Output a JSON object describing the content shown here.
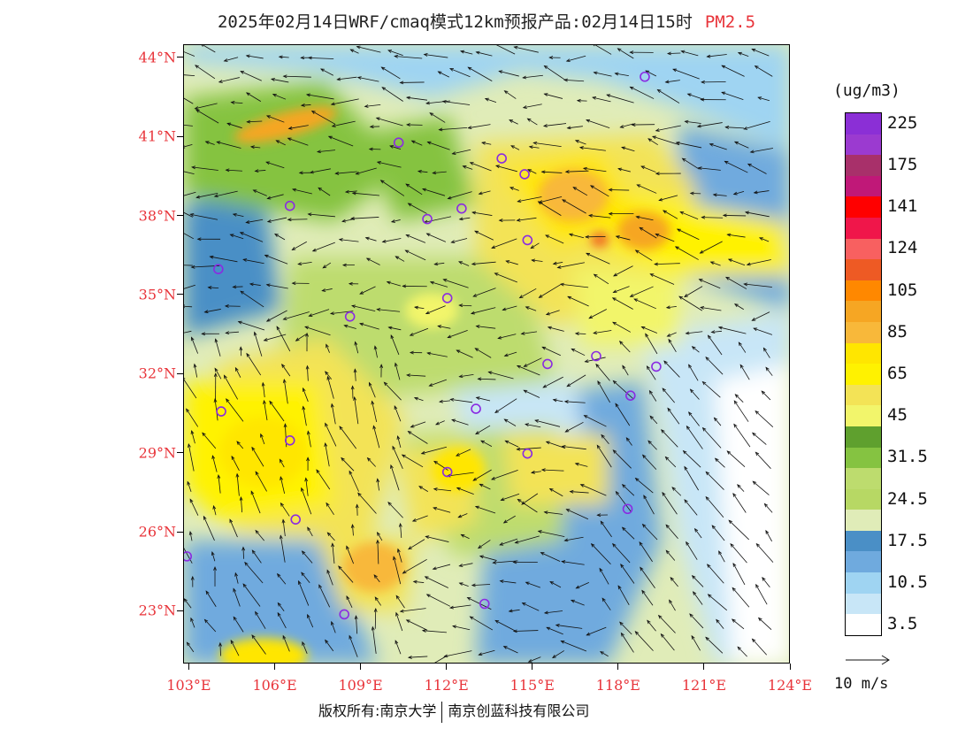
{
  "header": {
    "title": "2025年02月14日WRF/cmaq模式12km预报产品:02月14日15时",
    "variable": "PM2.5",
    "variable_color": "#e8343a"
  },
  "axes": {
    "lat_labels": [
      "44°N",
      "41°N",
      "38°N",
      "35°N",
      "32°N",
      "29°N",
      "26°N",
      "23°N"
    ],
    "lat_values": [
      44,
      41,
      38,
      35,
      32,
      29,
      26,
      23
    ],
    "lon_labels": [
      "103°E",
      "106°E",
      "109°E",
      "112°E",
      "115°E",
      "118°E",
      "121°E",
      "124°E"
    ],
    "lon_values": [
      103,
      106,
      109,
      112,
      115,
      118,
      121,
      124
    ],
    "lat_range": [
      21,
      44.5
    ],
    "lon_range": [
      102.8,
      124
    ],
    "label_color": "#e8343a"
  },
  "colorbar": {
    "unit": "(ug/m3)",
    "colors": [
      "#8b2fd6",
      "#9b3ad0",
      "#a8306a",
      "#c01878",
      "#ff0000",
      "#f0164a",
      "#f86060",
      "#ee5a24",
      "#ff8800",
      "#f6a623",
      "#f8b83a",
      "#ffe600",
      "#fff200",
      "#f3e356",
      "#f2f56b",
      "#5fa02e",
      "#85c341",
      "#bddc6e",
      "#b7d864",
      "#e0ecb8",
      "#4a8fc6",
      "#6faade",
      "#9fd4f2",
      "#c8e6f7",
      "#ffffff"
    ],
    "labels": [
      {
        "text": "225",
        "index": 1
      },
      {
        "text": "175",
        "index": 3
      },
      {
        "text": "141",
        "index": 5
      },
      {
        "text": "124",
        "index": 7
      },
      {
        "text": "105",
        "index": 9
      },
      {
        "text": "85",
        "index": 11
      },
      {
        "text": "65",
        "index": 13
      },
      {
        "text": "45",
        "index": 15
      },
      {
        "text": "31.5",
        "index": 17
      },
      {
        "text": "24.5",
        "index": 19
      },
      {
        "text": "17.5",
        "index": 21
      },
      {
        "text": "10.5",
        "index": 23
      },
      {
        "text": "3.5",
        "index": 25
      }
    ]
  },
  "reference_vector": {
    "label": "10 m/s"
  },
  "footer": {
    "left": "版权所有:南京大学",
    "right": "南京创蓝科技有限公司"
  },
  "cities": [
    {
      "lon": 118.9,
      "lat": 43.3
    },
    {
      "lon": 110.3,
      "lat": 40.8
    },
    {
      "lon": 113.9,
      "lat": 40.2
    },
    {
      "lon": 114.7,
      "lat": 39.6
    },
    {
      "lon": 106.5,
      "lat": 38.4
    },
    {
      "lon": 111.3,
      "lat": 37.9
    },
    {
      "lon": 112.5,
      "lat": 38.3
    },
    {
      "lon": 114.8,
      "lat": 37.1
    },
    {
      "lon": 104.0,
      "lat": 36.0
    },
    {
      "lon": 112.0,
      "lat": 34.9
    },
    {
      "lon": 108.6,
      "lat": 34.2
    },
    {
      "lon": 115.5,
      "lat": 32.4
    },
    {
      "lon": 117.2,
      "lat": 32.7
    },
    {
      "lon": 119.3,
      "lat": 32.3
    },
    {
      "lon": 118.4,
      "lat": 31.2
    },
    {
      "lon": 104.1,
      "lat": 30.6
    },
    {
      "lon": 113.0,
      "lat": 30.7
    },
    {
      "lon": 106.5,
      "lat": 29.5
    },
    {
      "lon": 114.8,
      "lat": 29.0
    },
    {
      "lon": 112.0,
      "lat": 28.3
    },
    {
      "lon": 106.7,
      "lat": 26.5
    },
    {
      "lon": 118.3,
      "lat": 26.9
    },
    {
      "lon": 102.9,
      "lat": 25.1
    },
    {
      "lon": 108.4,
      "lat": 22.9
    },
    {
      "lon": 113.3,
      "lat": 23.3
    }
  ]
}
